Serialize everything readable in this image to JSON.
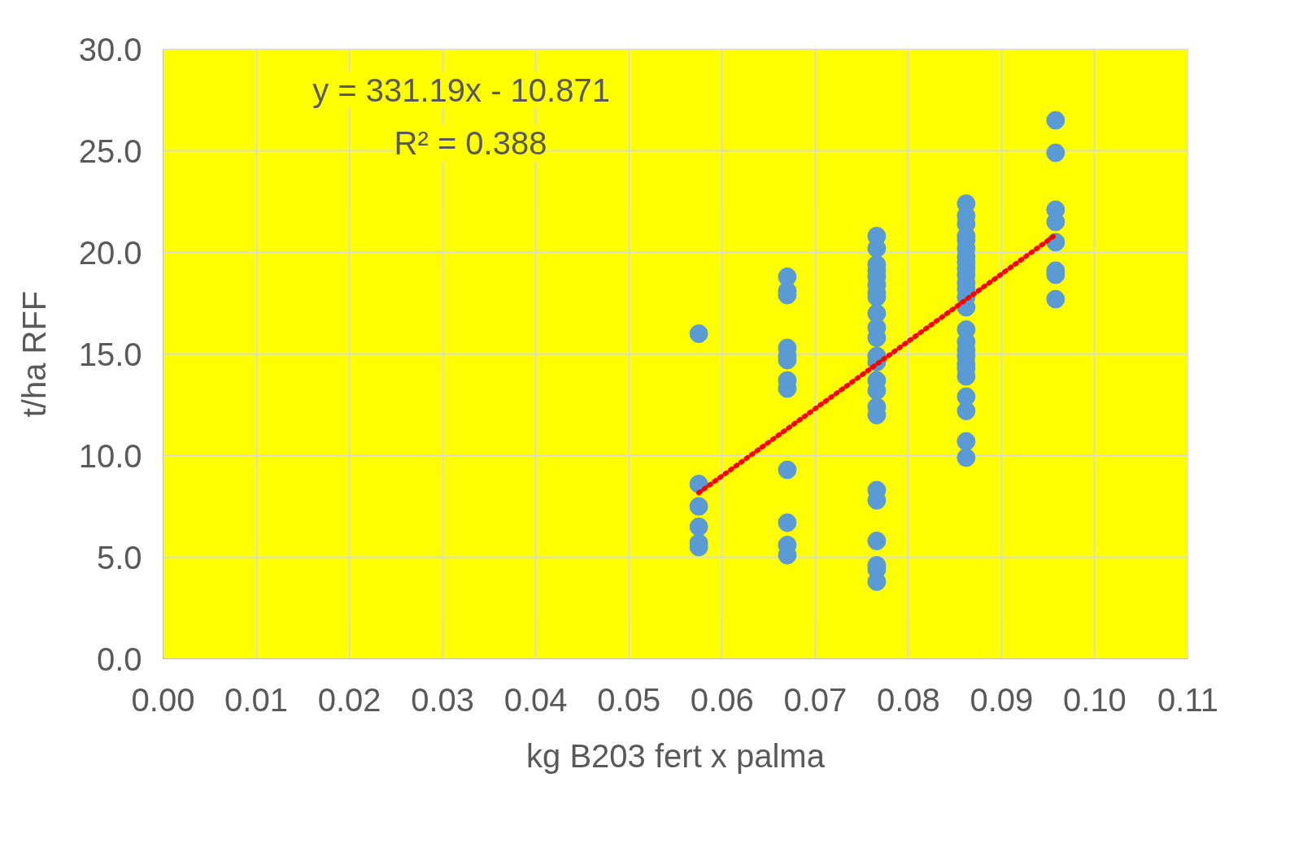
{
  "chart_data": {
    "type": "scatter",
    "xlabel": "kg B203 fert x palma",
    "ylabel": "t/ha RFF",
    "xlim": [
      0,
      0.11
    ],
    "ylim": [
      0,
      30
    ],
    "xticks": [
      {
        "value": 0,
        "label": "0.00"
      },
      {
        "value": 0.01,
        "label": "0.01"
      },
      {
        "value": 0.02,
        "label": "0.02"
      },
      {
        "value": 0.03,
        "label": "0.03"
      },
      {
        "value": 0.04,
        "label": "0.04"
      },
      {
        "value": 0.05,
        "label": "0.05"
      },
      {
        "value": 0.06,
        "label": "0.06"
      },
      {
        "value": 0.07,
        "label": "0.07"
      },
      {
        "value": 0.08,
        "label": "0.08"
      },
      {
        "value": 0.09,
        "label": "0.09"
      },
      {
        "value": 0.1,
        "label": "0.10"
      },
      {
        "value": 0.11,
        "label": "0.11"
      }
    ],
    "yticks": [
      {
        "value": 0,
        "label": "0.0"
      },
      {
        "value": 5,
        "label": "5.0"
      },
      {
        "value": 10,
        "label": "10.0"
      },
      {
        "value": 15,
        "label": "15.0"
      },
      {
        "value": 20,
        "label": "20.0"
      },
      {
        "value": 25,
        "label": "25.0"
      },
      {
        "value": 30,
        "label": "30.0"
      }
    ],
    "grid": true,
    "marker": "circle",
    "annotations": [
      "y = 331.19x - 10.871",
      "R² = 0.388"
    ],
    "series": [
      {
        "color": "#5b9bd5",
        "x": [
          0.0575,
          0.0575,
          0.0575,
          0.0575,
          0.0575,
          0.0575,
          0.067,
          0.067,
          0.067,
          0.067,
          0.067,
          0.067,
          0.067,
          0.067,
          0.067,
          0.067,
          0.067,
          0.067,
          0.0766,
          0.0766,
          0.0766,
          0.0766,
          0.0766,
          0.0766,
          0.0766,
          0.0766,
          0.0766,
          0.0766,
          0.0766,
          0.0766,
          0.0766,
          0.0766,
          0.0766,
          0.0766,
          0.0766,
          0.0766,
          0.0766,
          0.0766,
          0.0766,
          0.0766,
          0.0766,
          0.0862,
          0.0862,
          0.0862,
          0.0862,
          0.0862,
          0.0862,
          0.0862,
          0.0862,
          0.0862,
          0.0862,
          0.0862,
          0.0862,
          0.0862,
          0.0862,
          0.0862,
          0.0862,
          0.0862,
          0.0862,
          0.0862,
          0.0862,
          0.0862,
          0.0862,
          0.0862,
          0.0862,
          0.0862,
          0.0958,
          0.0958,
          0.0958,
          0.0958,
          0.0958,
          0.0958,
          0.0958,
          0.0958
        ],
        "values": [
          16.0,
          8.6,
          7.5,
          6.5,
          5.7,
          5.5,
          18.8,
          18.1,
          17.9,
          15.3,
          14.9,
          14.7,
          13.7,
          13.3,
          9.3,
          6.7,
          5.6,
          5.1,
          20.8,
          20.2,
          19.4,
          19.1,
          18.8,
          18.4,
          18.0,
          17.8,
          17.0,
          16.3,
          15.8,
          14.9,
          14.6,
          13.7,
          13.2,
          12.4,
          12.0,
          8.3,
          7.8,
          5.8,
          4.6,
          4.4,
          3.8,
          22.4,
          21.8,
          21.4,
          20.8,
          20.6,
          20.2,
          19.8,
          19.5,
          19.2,
          18.9,
          18.5,
          18.2,
          17.8,
          17.3,
          16.2,
          15.6,
          15.2,
          14.9,
          14.5,
          14.3,
          13.9,
          12.9,
          12.2,
          10.7,
          9.9,
          26.5,
          24.9,
          22.1,
          21.5,
          20.5,
          19.1,
          18.9,
          17.7
        ]
      },
      {
        "type": "line",
        "color": "#ff0000",
        "line_style": "dotted",
        "marker": "none",
        "x": [
          0.0575,
          0.0958
        ],
        "values": [
          8.17,
          20.86
        ]
      }
    ]
  }
}
